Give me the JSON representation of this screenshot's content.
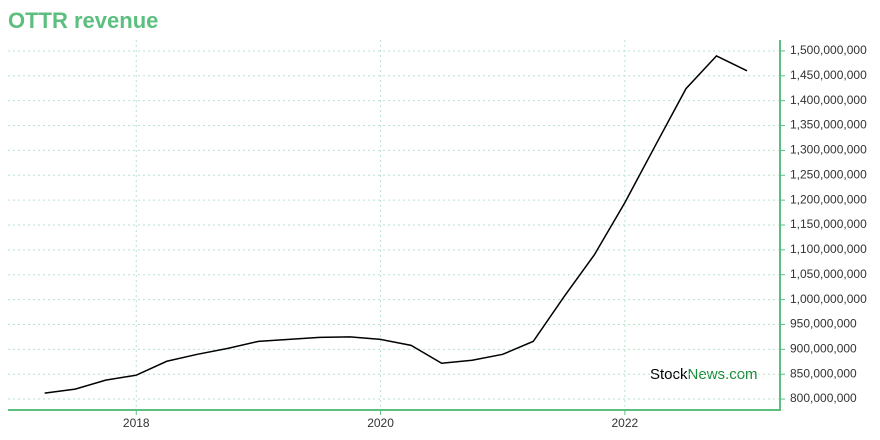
{
  "chart_data": {
    "type": "line",
    "title": "OTTR revenue",
    "x": [
      2017.25,
      2017.5,
      2017.75,
      2018,
      2018.25,
      2018.5,
      2018.75,
      2019,
      2019.25,
      2019.5,
      2019.75,
      2020,
      2020.25,
      2020.5,
      2020.75,
      2021,
      2021.25,
      2021.5,
      2021.75,
      2022,
      2022.25,
      2022.5,
      2022.75,
      2023
    ],
    "series": [
      {
        "name": "OTTR revenue",
        "color": "#000000",
        "values": [
          812000000,
          820000000,
          838000000,
          848000000,
          876000000,
          890000000,
          902000000,
          916000000,
          920000000,
          924000000,
          925000000,
          920000000,
          908000000,
          872000000,
          878000000,
          890000000,
          916000000,
          1005000000,
          1090000000,
          1195000000,
          1310000000,
          1424000000,
          1490000000,
          1460000000
        ]
      }
    ],
    "xlim": [
      2016.95,
      2023.27
    ],
    "xticks": [
      2018,
      2020,
      2022
    ],
    "ylim": [
      778000000,
      1522000000
    ],
    "yticks": [
      {
        "value": 800000000,
        "label": "800,000,000"
      },
      {
        "value": 850000000,
        "label": "850,000,000"
      },
      {
        "value": 900000000,
        "label": "900,000,000"
      },
      {
        "value": 950000000,
        "label": "950,000,000"
      },
      {
        "value": 1000000000,
        "label": "1,000,000,000"
      },
      {
        "value": 1050000000,
        "label": "1,050,000,000"
      },
      {
        "value": 1100000000,
        "label": "1,100,000,000"
      },
      {
        "value": 1150000000,
        "label": "1,150,000,000"
      },
      {
        "value": 1200000000,
        "label": "1,200,000,000"
      },
      {
        "value": 1250000000,
        "label": "1,250,000,000"
      },
      {
        "value": 1300000000,
        "label": "1,300,000,000"
      },
      {
        "value": 1350000000,
        "label": "1,350,000,000"
      },
      {
        "value": 1400000000,
        "label": "1,400,000,000"
      },
      {
        "value": 1450000000,
        "label": "1,450,000,000"
      },
      {
        "value": 1500000000,
        "label": "1,500,000,000"
      }
    ],
    "grid": true,
    "watermark": {
      "stock": "Stock",
      "news": "News.com"
    }
  }
}
